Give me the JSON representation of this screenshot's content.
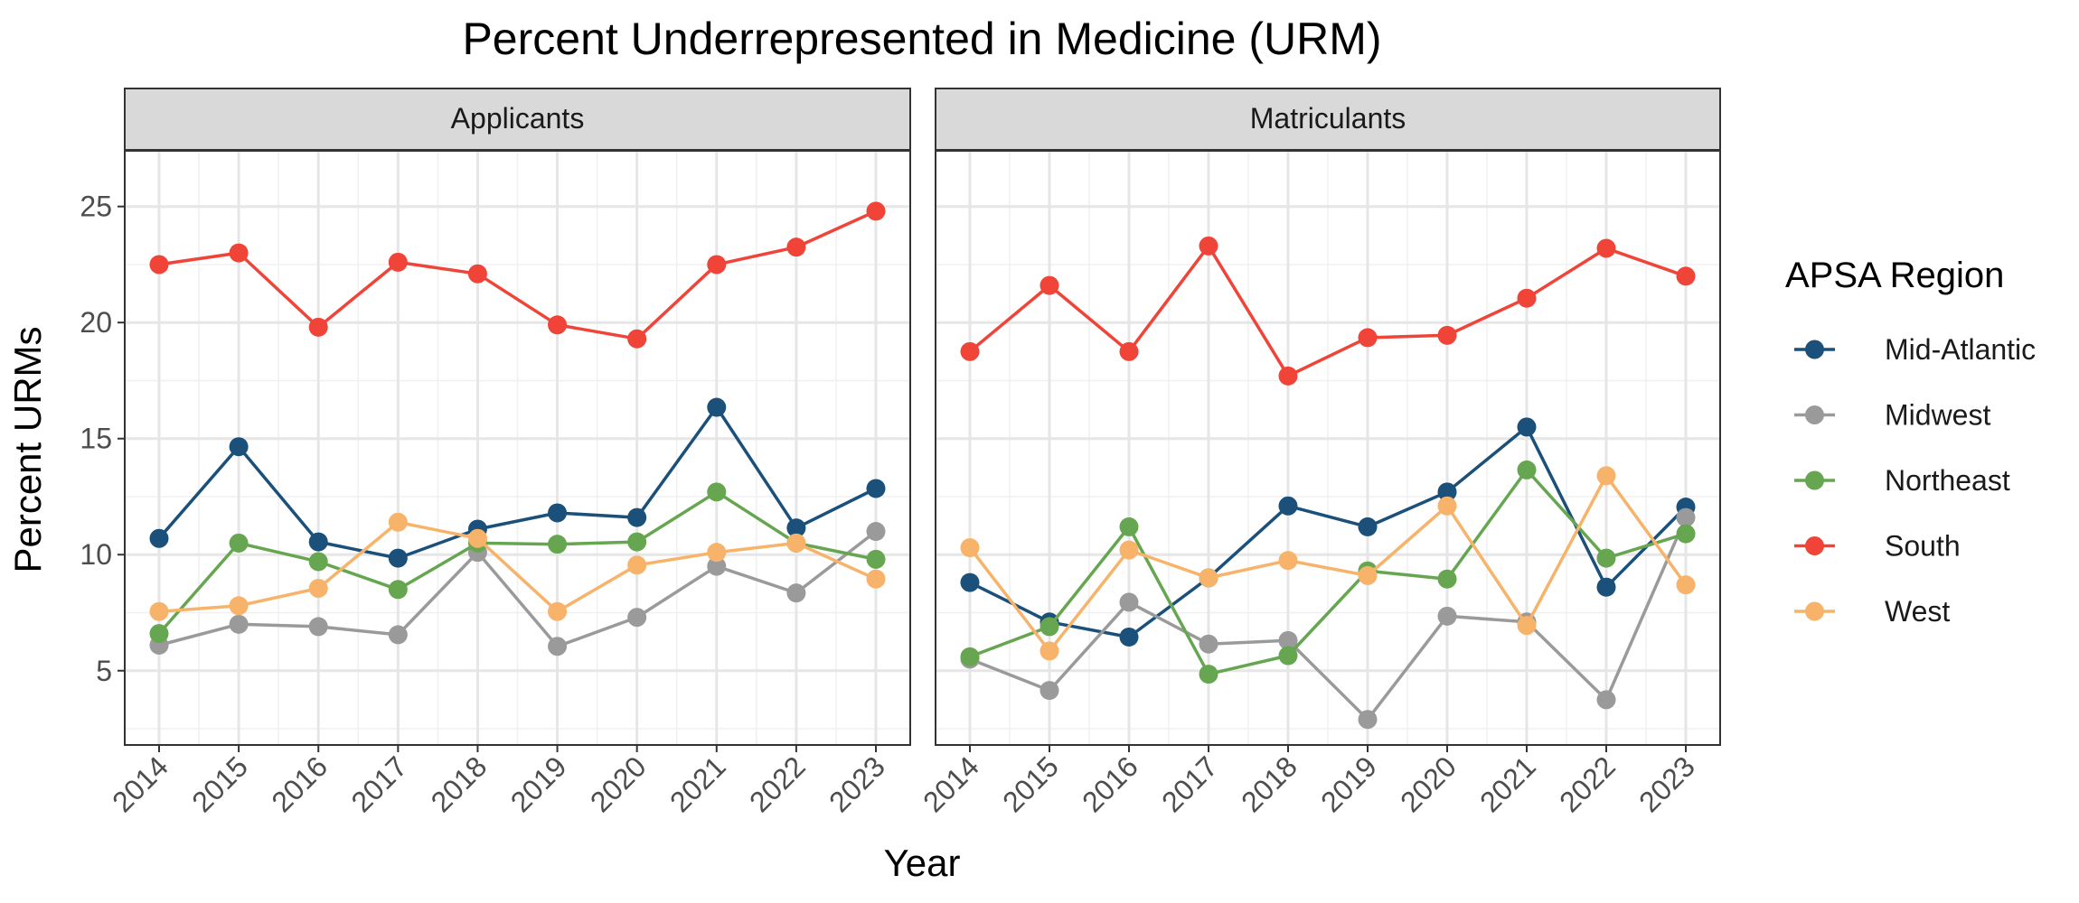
{
  "chart_data": {
    "type": "line",
    "title": "Percent Underrepresented in Medicine (URM)",
    "xlabel": "Year",
    "ylabel": "Percent URMs",
    "ylim": [
      1.8,
      27.4
    ],
    "yticks": [
      5,
      10,
      15,
      20,
      25
    ],
    "x": [
      "2014",
      "2015",
      "2016",
      "2017",
      "2018",
      "2019",
      "2020",
      "2021",
      "2022",
      "2023"
    ],
    "grid": true,
    "legend": {
      "title": "APSA Region",
      "placement": "right",
      "entries": [
        "Mid-Atlantic",
        "Midwest",
        "Northeast",
        "South",
        "West"
      ]
    },
    "panels": [
      {
        "label": "Applicants",
        "series": [
          {
            "name": "Mid-Atlantic",
            "color": "#1a5079",
            "values": [
              10.7,
              14.65,
              10.55,
              9.85,
              11.1,
              11.8,
              11.6,
              16.35,
              11.15,
              12.85
            ]
          },
          {
            "name": "Midwest",
            "color": "#9a9a9a",
            "values": [
              6.1,
              7.0,
              6.9,
              6.55,
              10.1,
              6.05,
              7.3,
              9.5,
              8.35,
              11.0
            ]
          },
          {
            "name": "Northeast",
            "color": "#66a650",
            "values": [
              6.6,
              10.5,
              9.7,
              8.5,
              10.5,
              10.45,
              10.55,
              12.7,
              10.5,
              9.8
            ]
          },
          {
            "name": "South",
            "color": "#f04438",
            "values": [
              22.5,
              23.0,
              19.8,
              22.6,
              22.1,
              19.9,
              19.3,
              22.5,
              23.25,
              24.8
            ]
          },
          {
            "name": "West",
            "color": "#f7b36a",
            "values": [
              7.55,
              7.8,
              8.55,
              11.4,
              10.7,
              7.55,
              9.55,
              10.1,
              10.5,
              8.95
            ]
          }
        ]
      },
      {
        "label": "Matriculants",
        "series": [
          {
            "name": "Mid-Atlantic",
            "color": "#1a5079",
            "values": [
              8.8,
              7.1,
              6.45,
              9.0,
              12.1,
              11.2,
              12.7,
              15.5,
              8.6,
              12.05
            ]
          },
          {
            "name": "Midwest",
            "color": "#9a9a9a",
            "values": [
              5.5,
              4.15,
              7.95,
              6.15,
              6.3,
              2.9,
              7.35,
              7.1,
              3.75,
              11.6
            ]
          },
          {
            "name": "Northeast",
            "color": "#66a650",
            "values": [
              5.6,
              6.9,
              11.2,
              4.85,
              5.65,
              9.3,
              8.95,
              13.65,
              9.85,
              10.9
            ]
          },
          {
            "name": "South",
            "color": "#f04438",
            "values": [
              18.75,
              21.6,
              18.75,
              23.3,
              17.7,
              19.35,
              19.45,
              21.05,
              23.2,
              22.0
            ]
          },
          {
            "name": "West",
            "color": "#f7b36a",
            "values": [
              10.3,
              5.85,
              10.2,
              9.0,
              9.75,
              9.1,
              12.1,
              6.95,
              13.4,
              8.7
            ]
          }
        ]
      }
    ]
  }
}
